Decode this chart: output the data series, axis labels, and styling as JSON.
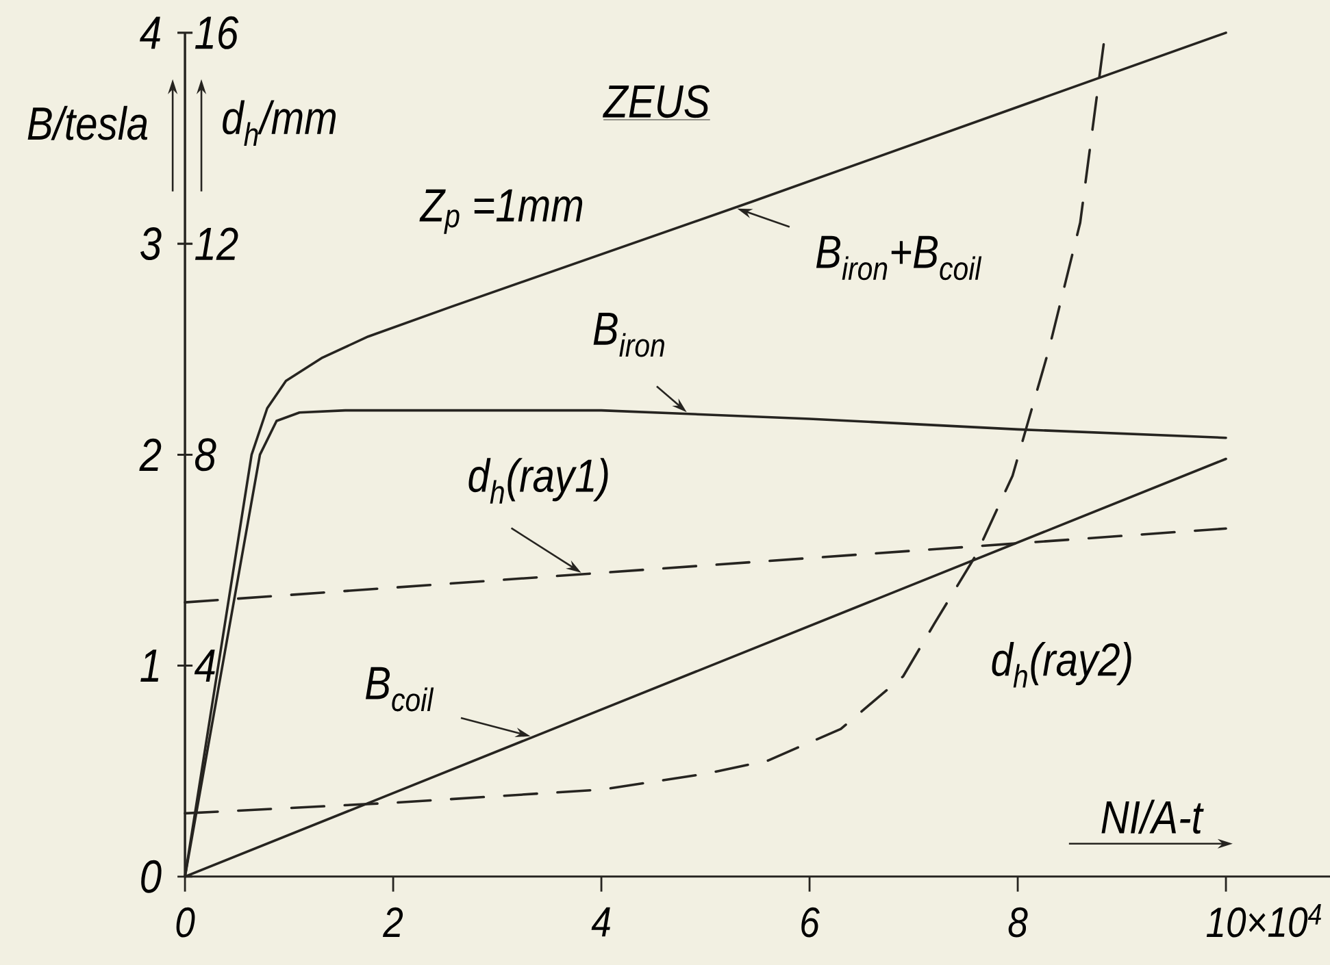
{
  "chart_data": {
    "type": "line",
    "title": "ZEUS",
    "xlabel": "NI/A-t",
    "ylabel": "B/tesla",
    "y2label": "d$_{h}$/mm",
    "annotations": [
      "Z$_{p}$ =1mm",
      "×10$^{4}$"
    ],
    "xlim": [
      0,
      11
    ],
    "xticks": [
      0,
      2,
      4,
      6,
      8,
      10
    ],
    "ylim": [
      0,
      4
    ],
    "yticks": [
      0,
      1,
      2,
      3,
      4
    ],
    "y2lim": [
      0,
      16
    ],
    "y2ticks": [
      4,
      8,
      12,
      16
    ],
    "series": [
      {
        "name": "B$_{iron}$+B$_{coil}$",
        "color": "#262420",
        "line_style": "solid",
        "x": [
          0,
          0.64,
          0.79,
          0.97,
          1.32,
          1.76,
          2.55,
          5.45,
          10
        ],
        "values": [
          0,
          2.0,
          2.22,
          2.35,
          2.46,
          2.56,
          2.7,
          3.2,
          4.0
        ]
      },
      {
        "name": "B$_{iron}$",
        "color": "#262420",
        "line_style": "solid",
        "x": [
          0,
          0.72,
          0.88,
          1.1,
          1.54,
          4,
          6,
          8,
          10
        ],
        "values": [
          0,
          2.0,
          2.16,
          2.2,
          2.21,
          2.21,
          2.17,
          2.12,
          2.08
        ]
      },
      {
        "name": "B$_{coil}$",
        "color": "#262420",
        "line_style": "solid",
        "x": [
          0,
          10
        ],
        "values": [
          0,
          1.98
        ]
      },
      {
        "name": "d$_{h}$(ray1)",
        "color": "#262420",
        "line_style": "dashed",
        "axis": "y2",
        "x": [
          0,
          10
        ],
        "values": [
          5.2,
          6.6
        ]
      },
      {
        "name": "d$_{h}$(ray2)",
        "color": "#262420",
        "line_style": "dashed",
        "axis": "y2",
        "x": [
          0,
          2,
          4,
          5,
          5.6,
          6.3,
          6.9,
          7.2,
          7.6,
          7.95,
          8.3,
          8.6,
          8.84
        ],
        "values": [
          1.2,
          1.4,
          1.65,
          1.95,
          2.2,
          2.8,
          3.8,
          4.8,
          6.1,
          7.6,
          10.0,
          12.4,
          16
        ]
      }
    ]
  }
}
